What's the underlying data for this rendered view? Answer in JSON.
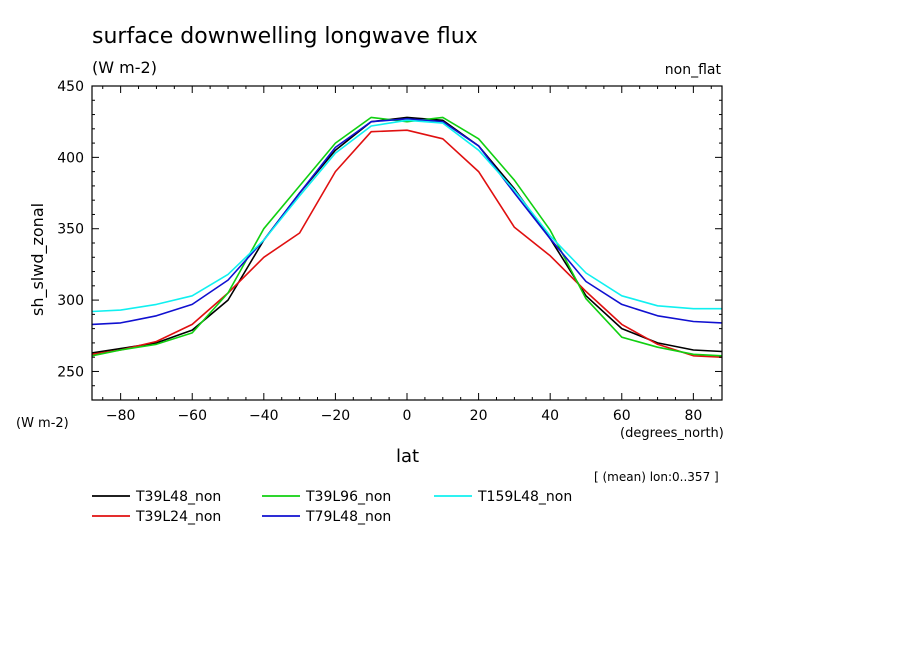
{
  "header": {
    "title": "surface downwelling longwave flux",
    "title_units": "(W m-2)",
    "subtitle_right": "non_flat",
    "mean_note": "[ (mean) lon:0..357 ]"
  },
  "chart_data": {
    "type": "line",
    "title": "surface downwelling longwave flux",
    "xlabel": "lat",
    "xunits": "(degrees_north)",
    "ylabel": "sh_slwd_zonal",
    "yunits": "(W m-2)",
    "xlim": [
      -88,
      88
    ],
    "ylim": [
      230,
      450
    ],
    "xticks": [
      -80,
      -60,
      -40,
      -20,
      0,
      20,
      40,
      60,
      80
    ],
    "xtick_labels": [
      "-80",
      "-60",
      "-40",
      "-20",
      "0",
      "20",
      "40",
      "60",
      "80"
    ],
    "yticks": [
      250,
      300,
      350,
      400,
      450
    ],
    "ytick_labels": [
      "250",
      "300",
      "350",
      "400",
      "450"
    ],
    "grid": false,
    "legend_position": "bottom",
    "x": [
      -88,
      -80,
      -70,
      -60,
      -50,
      -40,
      -30,
      -20,
      -10,
      0,
      10,
      20,
      30,
      40,
      50,
      60,
      70,
      80,
      88
    ],
    "series": [
      {
        "name": "T39L48_non",
        "color": "#000000",
        "values": [
          263,
          266,
          270,
          279,
          300,
          342,
          375,
          405,
          425,
          428,
          426,
          408,
          378,
          343,
          303,
          280,
          270,
          265,
          264
        ]
      },
      {
        "name": "T39L24_non",
        "color": "#e01010",
        "values": [
          262,
          265,
          271,
          283,
          305,
          330,
          347,
          390,
          418,
          419,
          413,
          390,
          351,
          331,
          306,
          283,
          269,
          261,
          260
        ]
      },
      {
        "name": "T39L96_non",
        "color": "#10d010",
        "values": [
          261,
          265,
          269,
          277,
          305,
          350,
          380,
          410,
          428,
          425,
          428,
          413,
          384,
          349,
          301,
          274,
          267,
          262,
          261
        ]
      },
      {
        "name": "T79L48_non",
        "color": "#1010d0",
        "values": [
          283,
          284,
          289,
          297,
          314,
          342,
          375,
          407,
          425,
          427,
          425,
          408,
          375,
          343,
          313,
          297,
          289,
          285,
          284
        ]
      },
      {
        "name": "T159L48_non",
        "color": "#10f0f0",
        "values": [
          292,
          293,
          297,
          303,
          318,
          342,
          373,
          403,
          422,
          426,
          424,
          405,
          377,
          345,
          319,
          303,
          296,
          294,
          294
        ]
      }
    ]
  }
}
